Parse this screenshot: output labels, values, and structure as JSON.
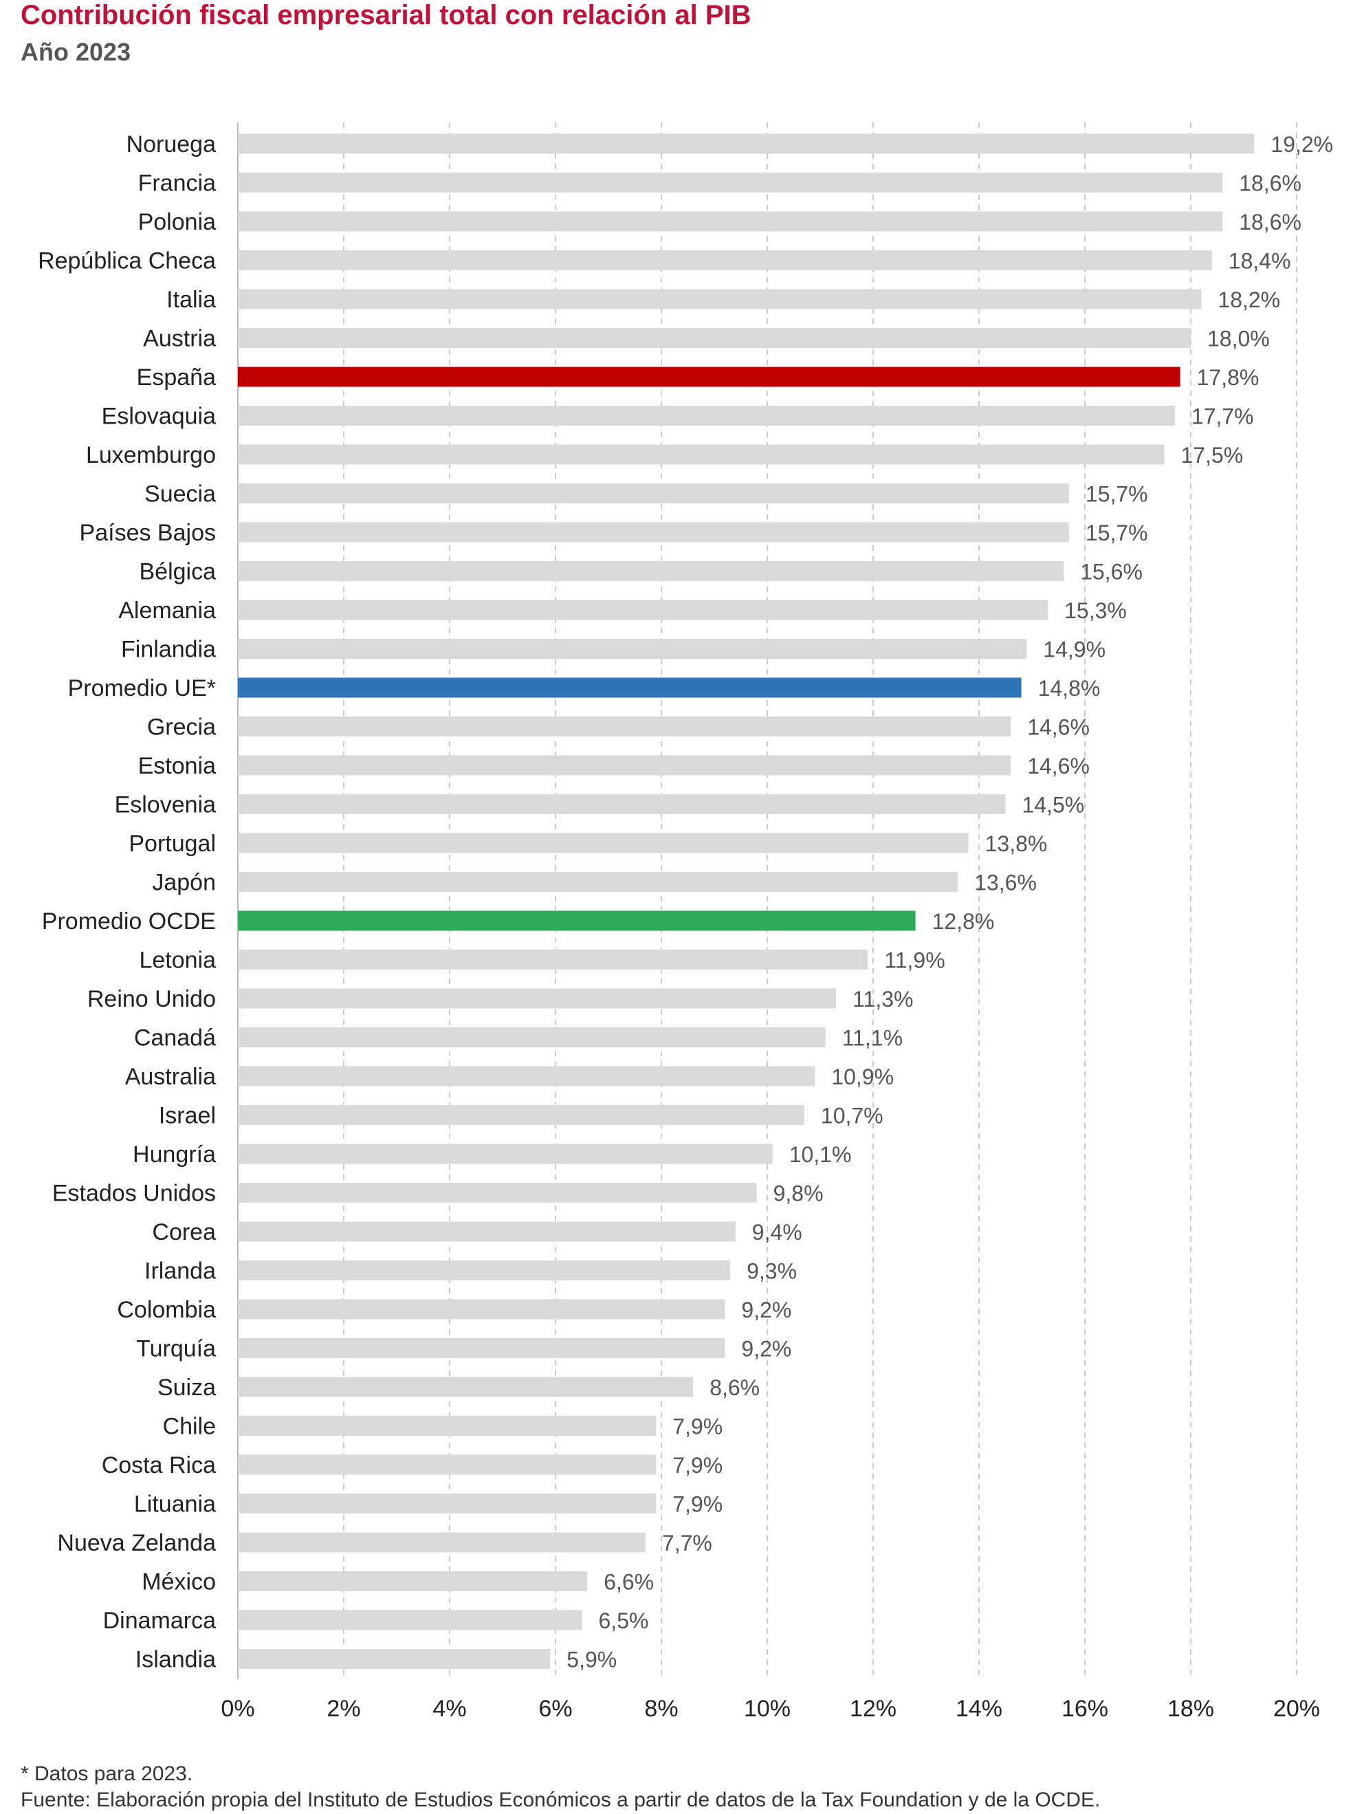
{
  "chart_data": {
    "type": "bar",
    "orientation": "horizontal",
    "title": "Contribución fiscal empresarial total con relación al PIB",
    "subtitle": "Año 2023",
    "categories": [
      "Noruega",
      "Francia",
      "Polonia",
      "República Checa",
      "Italia",
      "Austria",
      "España",
      "Eslovaquia",
      "Luxemburgo",
      "Suecia",
      "Países Bajos",
      "Bélgica",
      "Alemania",
      "Finlandia",
      "Promedio UE*",
      "Grecia",
      "Estonia",
      "Eslovenia",
      "Portugal",
      "Japón",
      "Promedio OCDE",
      "Letonia",
      "Reino Unido",
      "Canadá",
      "Australia",
      "Israel",
      "Hungría",
      "Estados Unidos",
      "Corea",
      "Irlanda",
      "Colombia",
      "Turquía",
      "Suiza",
      "Chile",
      "Costa Rica",
      "Lituania",
      "Nueva Zelanda",
      "México",
      "Dinamarca",
      "Islandia"
    ],
    "values": [
      19.2,
      18.6,
      18.6,
      18.4,
      18.2,
      18.0,
      17.8,
      17.7,
      17.5,
      15.7,
      15.7,
      15.6,
      15.3,
      14.9,
      14.8,
      14.6,
      14.6,
      14.5,
      13.8,
      13.6,
      12.8,
      11.9,
      11.3,
      11.1,
      10.9,
      10.7,
      10.1,
      9.8,
      9.4,
      9.3,
      9.2,
      9.2,
      8.6,
      7.9,
      7.9,
      7.9,
      7.7,
      6.6,
      6.5,
      5.9
    ],
    "value_labels": [
      "19,2%",
      "18,6%",
      "18,6%",
      "18,4%",
      "18,2%",
      "18,0%",
      "17,8%",
      "17,7%",
      "17,5%",
      "15,7%",
      "15,7%",
      "15,6%",
      "15,3%",
      "14,9%",
      "14,8%",
      "14,6%",
      "14,6%",
      "14,5%",
      "13,8%",
      "13,6%",
      "12,8%",
      "11,9%",
      "11,3%",
      "11,1%",
      "10,9%",
      "10,7%",
      "10,1%",
      "9,8%",
      "9,4%",
      "9,3%",
      "9,2%",
      "9,2%",
      "8,6%",
      "7,9%",
      "7,9%",
      "7,9%",
      "7,7%",
      "6,6%",
      "6,5%",
      "5,9%"
    ],
    "xlim": [
      0,
      20
    ],
    "x_ticks": [
      0,
      2,
      4,
      6,
      8,
      10,
      12,
      14,
      16,
      18,
      20
    ],
    "x_tick_labels": [
      "0%",
      "2%",
      "4%",
      "6%",
      "8%",
      "10%",
      "12%",
      "14%",
      "16%",
      "18%",
      "20%"
    ],
    "grid": "vertical dashed",
    "colors": {
      "default": "#d9d9d9",
      "highlights": {
        "España": "#c00000",
        "Promedio UE*": "#2e75b6",
        "Promedio OCDE": "#2eaa5a"
      },
      "title": "#c0113a",
      "grid": "#cccccc"
    }
  },
  "footnotes": {
    "note": "* Datos para 2023.",
    "source": "Fuente: Elaboración propia del Instituto de Estudios Económicos a partir de datos de la Tax Foundation y de la OCDE."
  }
}
